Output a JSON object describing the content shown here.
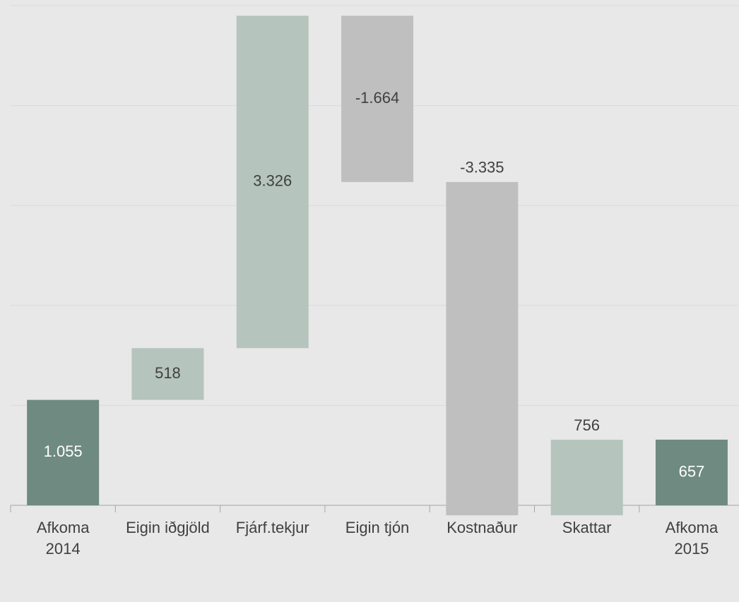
{
  "chart_data": {
    "type": "waterfall",
    "categories": [
      "Afkoma\n2014",
      "Eigin iðgjöld",
      "Fjárf.tekjur",
      "Eigin tjón",
      "Kostnaður",
      "Skattar",
      "Afkoma\n2015"
    ],
    "values": [
      1055,
      518,
      3326,
      -1664,
      -3335,
      756,
      657
    ],
    "value_labels": [
      "1.055",
      "518",
      "3.326",
      "-1.664",
      "-3.335",
      "756",
      "657"
    ],
    "total_indices": [
      0,
      6
    ],
    "colors": {
      "total": "#6f8a80",
      "increase": "#b5c4bd",
      "decrease": "#bfbfbf"
    },
    "ylim": [
      0,
      5000
    ],
    "yticks": [
      0,
      1000,
      2000,
      3000,
      4000,
      5000
    ],
    "grid": true
  }
}
